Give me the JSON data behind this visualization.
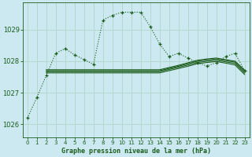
{
  "title": "Graphe pression niveau de la mer (hPa)",
  "background_color": "#cce8f0",
  "grid_color": "#b0d4c8",
  "line_color": "#1a5c1a",
  "xlim": [
    -0.5,
    23.5
  ],
  "ylim": [
    1025.6,
    1029.85
  ],
  "yticks": [
    1026,
    1027,
    1028,
    1029
  ],
  "xticks": [
    0,
    1,
    2,
    3,
    4,
    5,
    6,
    7,
    8,
    9,
    10,
    11,
    12,
    13,
    14,
    15,
    16,
    17,
    18,
    19,
    20,
    21,
    22,
    23
  ],
  "series_main": {
    "x": [
      0,
      1,
      2,
      3,
      4,
      5,
      6,
      7,
      8,
      9,
      10,
      11,
      12,
      13,
      14,
      15,
      16,
      17,
      18,
      19,
      20,
      21,
      22,
      23
    ],
    "y": [
      1026.2,
      1026.85,
      1027.55,
      1028.25,
      1028.4,
      1028.2,
      1028.05,
      1027.9,
      1029.3,
      1029.45,
      1029.55,
      1029.55,
      1029.55,
      1029.1,
      1028.55,
      1028.15,
      1028.25,
      1028.1,
      1027.95,
      1027.85,
      1027.95,
      1028.15,
      1028.25,
      1027.7
    ]
  },
  "series_flat1": {
    "x": [
      2,
      3,
      4,
      5,
      6,
      7,
      8,
      9,
      10,
      11,
      12,
      13,
      14,
      15,
      16,
      17,
      18,
      19,
      20,
      21,
      22,
      23
    ],
    "y": [
      1027.73,
      1027.73,
      1027.73,
      1027.73,
      1027.73,
      1027.73,
      1027.73,
      1027.73,
      1027.73,
      1027.73,
      1027.73,
      1027.73,
      1027.73,
      1027.8,
      1027.87,
      1027.95,
      1028.03,
      1028.07,
      1028.1,
      1028.05,
      1028.0,
      1027.72
    ]
  },
  "series_flat2": {
    "x": [
      2,
      3,
      4,
      5,
      6,
      7,
      8,
      9,
      10,
      11,
      12,
      13,
      14,
      15,
      16,
      17,
      18,
      19,
      20,
      21,
      22,
      23
    ],
    "y": [
      1027.7,
      1027.7,
      1027.7,
      1027.7,
      1027.7,
      1027.7,
      1027.7,
      1027.7,
      1027.7,
      1027.7,
      1027.7,
      1027.7,
      1027.7,
      1027.77,
      1027.84,
      1027.92,
      1028.0,
      1028.04,
      1028.07,
      1028.02,
      1027.97,
      1027.68
    ]
  },
  "series_flat3": {
    "x": [
      2,
      3,
      4,
      5,
      6,
      7,
      8,
      9,
      10,
      11,
      12,
      13,
      14,
      15,
      16,
      17,
      18,
      19,
      20,
      21,
      22,
      23
    ],
    "y": [
      1027.67,
      1027.67,
      1027.67,
      1027.67,
      1027.67,
      1027.67,
      1027.67,
      1027.67,
      1027.67,
      1027.67,
      1027.67,
      1027.67,
      1027.67,
      1027.74,
      1027.81,
      1027.88,
      1027.96,
      1028.0,
      1028.03,
      1027.98,
      1027.93,
      1027.63
    ]
  },
  "series_flat4": {
    "x": [
      2,
      3,
      4,
      5,
      6,
      7,
      8,
      9,
      10,
      11,
      12,
      13,
      14,
      15,
      16,
      17,
      18,
      19,
      20,
      21,
      22,
      23
    ],
    "y": [
      1027.63,
      1027.63,
      1027.63,
      1027.63,
      1027.63,
      1027.63,
      1027.63,
      1027.63,
      1027.63,
      1027.63,
      1027.63,
      1027.63,
      1027.63,
      1027.7,
      1027.77,
      1027.84,
      1027.92,
      1027.96,
      1027.99,
      1027.94,
      1027.88,
      1027.58
    ]
  }
}
